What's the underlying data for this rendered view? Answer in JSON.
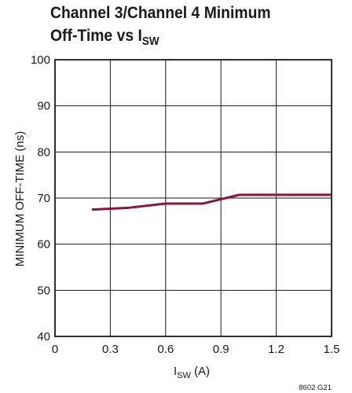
{
  "title": {
    "line1": "Channel 3/Channel 4 Minimum",
    "line2_main": "Off-Time vs I",
    "line2_sub": "SW"
  },
  "figure_id": "8602 G21",
  "chart_data": {
    "type": "line",
    "title": "Channel 3/Channel 4 Minimum Off-Time vs ISW",
    "xlabel_main": "I",
    "xlabel_sub": "SW",
    "xlabel_unit": " (A)",
    "ylabel": "MINIMUM OFF-TIME (ns)",
    "xlim": [
      0,
      1.5
    ],
    "ylim": [
      40,
      100
    ],
    "xticks": [
      0,
      0.3,
      0.6,
      0.9,
      1.2,
      1.5
    ],
    "xtick_labels": [
      "0",
      "0.3",
      "0.6",
      "0.9",
      "1.2",
      "1.5"
    ],
    "yticks": [
      40,
      50,
      60,
      70,
      80,
      90,
      100
    ],
    "ytick_labels": [
      "40",
      "50",
      "60",
      "70",
      "80",
      "90",
      "100"
    ],
    "grid": true,
    "series": [
      {
        "color": "#8b1538",
        "x": [
          0.2,
          0.4,
          0.6,
          0.8,
          1.0,
          1.2,
          1.5
        ],
        "y": [
          67.5,
          67.9,
          68.8,
          68.8,
          70.7,
          70.7,
          70.7
        ]
      }
    ]
  }
}
